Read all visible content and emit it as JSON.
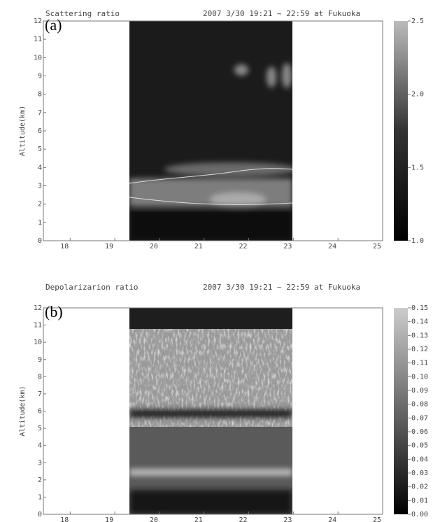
{
  "chart_data": [
    {
      "type": "heatmap",
      "panel_label": "(a)",
      "title": "Scattering ratio",
      "subtitle": "2007 3/30 19:21 ~ 22:59 at Fukuoka",
      "y_label": "Altitude(km)",
      "xlim": [
        17.4,
        25
      ],
      "xticks": [
        18,
        19,
        20,
        21,
        22,
        23,
        24,
        25
      ],
      "ylim": [
        0,
        12
      ],
      "yticks": [
        0,
        1,
        2,
        3,
        4,
        5,
        6,
        7,
        8,
        9,
        10,
        11,
        12
      ],
      "colorbar_lim": [
        1,
        2.5
      ],
      "colorbar_ticks": [
        {
          "value": 1,
          "label": "1.0"
        },
        {
          "value": 1.5,
          "label": "1.5"
        },
        {
          "value": 2,
          "label": "2.0"
        },
        {
          "value": 2.5,
          "label": "2.5"
        }
      ]
    },
    {
      "type": "heatmap",
      "panel_label": "(b)",
      "title": "Depolarizarion ratio",
      "subtitle": "2007 3/30 19:21 ~ 22:59 at Fukuoka",
      "y_label": "Altitude(km)",
      "xlim": [
        17.4,
        25
      ],
      "xticks": [
        18,
        19,
        20,
        21,
        22,
        23,
        24,
        25
      ],
      "ylim": [
        0,
        12
      ],
      "yticks": [
        0,
        1,
        2,
        3,
        4,
        5,
        6,
        7,
        8,
        9,
        10,
        11,
        12
      ],
      "colorbar_lim": [
        0,
        0.15
      ],
      "colorbar_ticks": [
        {
          "value": 0,
          "label": "0.00"
        },
        {
          "value": 0.01,
          "label": "0.01"
        },
        {
          "value": 0.02,
          "label": "0.02"
        },
        {
          "value": 0.03,
          "label": "0.03"
        },
        {
          "value": 0.04,
          "label": "0.04"
        },
        {
          "value": 0.05,
          "label": "0.05"
        },
        {
          "value": 0.06,
          "label": "0.06"
        },
        {
          "value": 0.07,
          "label": "0.07"
        },
        {
          "value": 0.08,
          "label": "0.08"
        },
        {
          "value": 0.09,
          "label": "0.09"
        },
        {
          "value": 0.1,
          "label": "0.10"
        },
        {
          "value": 0.11,
          "label": "0.11"
        },
        {
          "value": 0.12,
          "label": "0.12"
        },
        {
          "value": 0.13,
          "label": "0.13"
        },
        {
          "value": 0.14,
          "label": "0.14"
        },
        {
          "value": 0.15,
          "label": "0.15"
        }
      ]
    }
  ]
}
